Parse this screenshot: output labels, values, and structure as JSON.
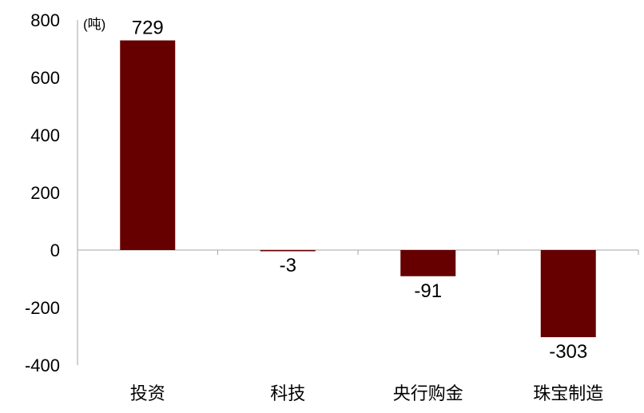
{
  "chart_data": {
    "type": "bar",
    "unit_label": "(吨)",
    "categories": [
      "投资",
      "科技",
      "央行购金",
      "珠宝制造"
    ],
    "values": [
      729,
      -3,
      -91,
      -303
    ],
    "data_labels": [
      "729",
      "-3",
      "-91",
      "-303"
    ],
    "ylim": [
      -400,
      800
    ],
    "yticks": [
      800,
      600,
      400,
      200,
      0,
      -200,
      -400
    ],
    "ytick_labels": [
      "800",
      "600",
      "400",
      "200",
      "0",
      "-200",
      "-400"
    ],
    "grid": false,
    "bar_color": "#660000",
    "axis_color": "#a6a6a6"
  }
}
